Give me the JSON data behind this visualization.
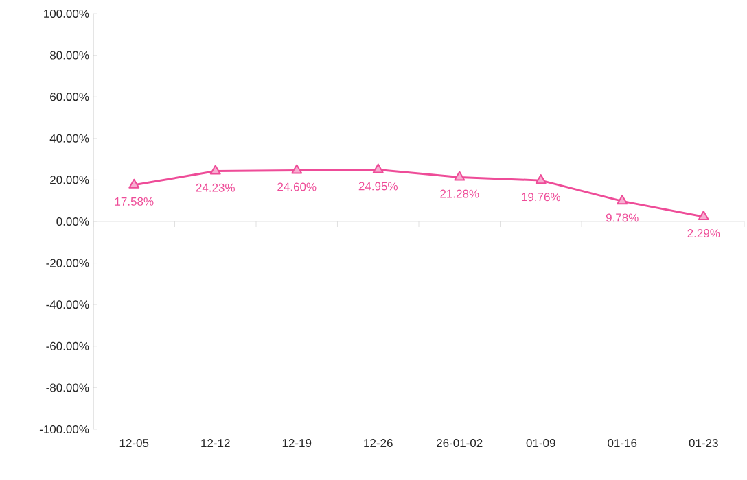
{
  "chart_data": {
    "type": "line",
    "categories": [
      "12-05",
      "12-12",
      "12-19",
      "12-26",
      "26-01-02",
      "01-09",
      "01-16",
      "01-23"
    ],
    "series": [
      {
        "color": "#ee4c98",
        "values": [
          17.58,
          24.23,
          24.6,
          24.95,
          21.28,
          19.76,
          9.78,
          2.29
        ],
        "value_labels": [
          "17.58%",
          "24.23%",
          "24.60%",
          "24.95%",
          "21.28%",
          "19.76%",
          "9.78%",
          "2.29%"
        ]
      }
    ],
    "ylim": [
      -100,
      100
    ],
    "yticks": [
      {
        "value": -100,
        "label": "-100.00%"
      },
      {
        "value": -80,
        "label": "-80.00%"
      },
      {
        "value": -60,
        "label": "-60.00%"
      },
      {
        "value": -40,
        "label": "-40.00%"
      },
      {
        "value": -20,
        "label": "-20.00%"
      },
      {
        "value": 0,
        "label": "0.00%"
      },
      {
        "value": 20,
        "label": "20.00%"
      },
      {
        "value": 40,
        "label": "40.00%"
      },
      {
        "value": 60,
        "label": "60.00%"
      },
      {
        "value": 80,
        "label": "80.00%"
      },
      {
        "value": 100,
        "label": "100.00%"
      }
    ],
    "marker": "triangle",
    "line_style": "solid"
  }
}
